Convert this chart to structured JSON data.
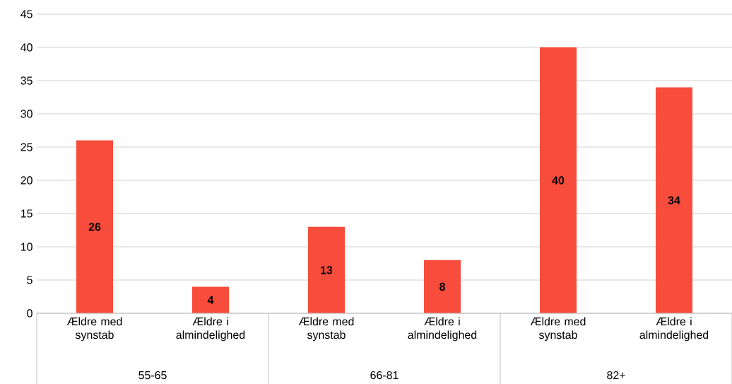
{
  "chart_data": {
    "type": "bar",
    "categories": [
      "Ældre med synstab",
      "Ældre i almindelighed",
      "Ældre med synstab",
      "Ældre i almindelighed",
      "Ældre med synstab",
      "Ældre i almindelighed"
    ],
    "values": [
      26,
      4,
      13,
      8,
      40,
      34
    ],
    "color": "#f84c3c",
    "ylim": [
      0,
      45
    ],
    "yticks": [
      0,
      5,
      10,
      15,
      20,
      25,
      30,
      35,
      40,
      45
    ],
    "grid": "y",
    "data_labels": true,
    "annotations": [
      "55-65",
      "66-81",
      "82+"
    ]
  }
}
